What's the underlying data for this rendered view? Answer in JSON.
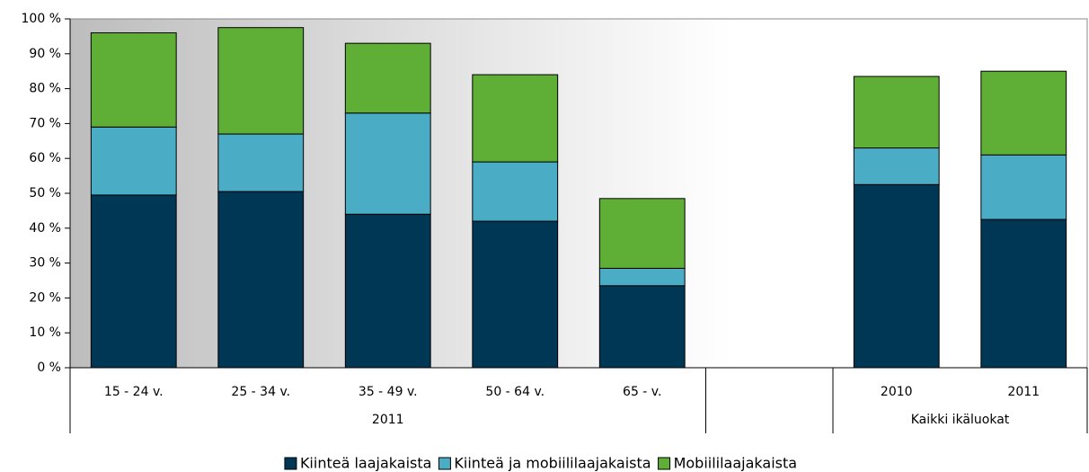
{
  "chart_data": {
    "type": "stacked_bar",
    "categories": [
      "15 - 24 v.",
      "25 - 34 v.",
      "35 - 49 v.",
      "50 - 64 v.",
      "65 -  v.",
      null,
      "2010",
      "2011"
    ],
    "groups": [
      {
        "label": "2011",
        "count": 5
      },
      {
        "label": null,
        "count": 1
      },
      {
        "label": "Kaikki ikäluokat",
        "count": 2
      }
    ],
    "series": [
      {
        "name": "Kiinteä laajakaista",
        "color": "#003755",
        "values": [
          49.5,
          50.5,
          44,
          42,
          23.5,
          null,
          52.5,
          42.5
        ]
      },
      {
        "name": "Kiinteä ja mobiililaajakaista",
        "color": "#4bacc6",
        "values": [
          19.5,
          16.5,
          29,
          17,
          5,
          null,
          10.5,
          18.5
        ]
      },
      {
        "name": "Mobiililaajakaista",
        "color": "#5fae35",
        "values": [
          27,
          30.5,
          20,
          25,
          20,
          null,
          20.5,
          24
        ]
      }
    ],
    "ylim": [
      0,
      100
    ],
    "yticks": [
      {
        "value": 0,
        "label": "0 %"
      },
      {
        "value": 10,
        "label": "10 %"
      },
      {
        "value": 20,
        "label": "20 %"
      },
      {
        "value": 30,
        "label": "30 %"
      },
      {
        "value": 40,
        "label": "40 %"
      },
      {
        "value": 50,
        "label": "50 %"
      },
      {
        "value": 60,
        "label": "60 %"
      },
      {
        "value": 70,
        "label": "70 %"
      },
      {
        "value": 80,
        "label": "80 %"
      },
      {
        "value": 90,
        "label": "90 %"
      },
      {
        "value": 100,
        "label": "100 %"
      }
    ],
    "grid": false,
    "legend": "bottom"
  }
}
